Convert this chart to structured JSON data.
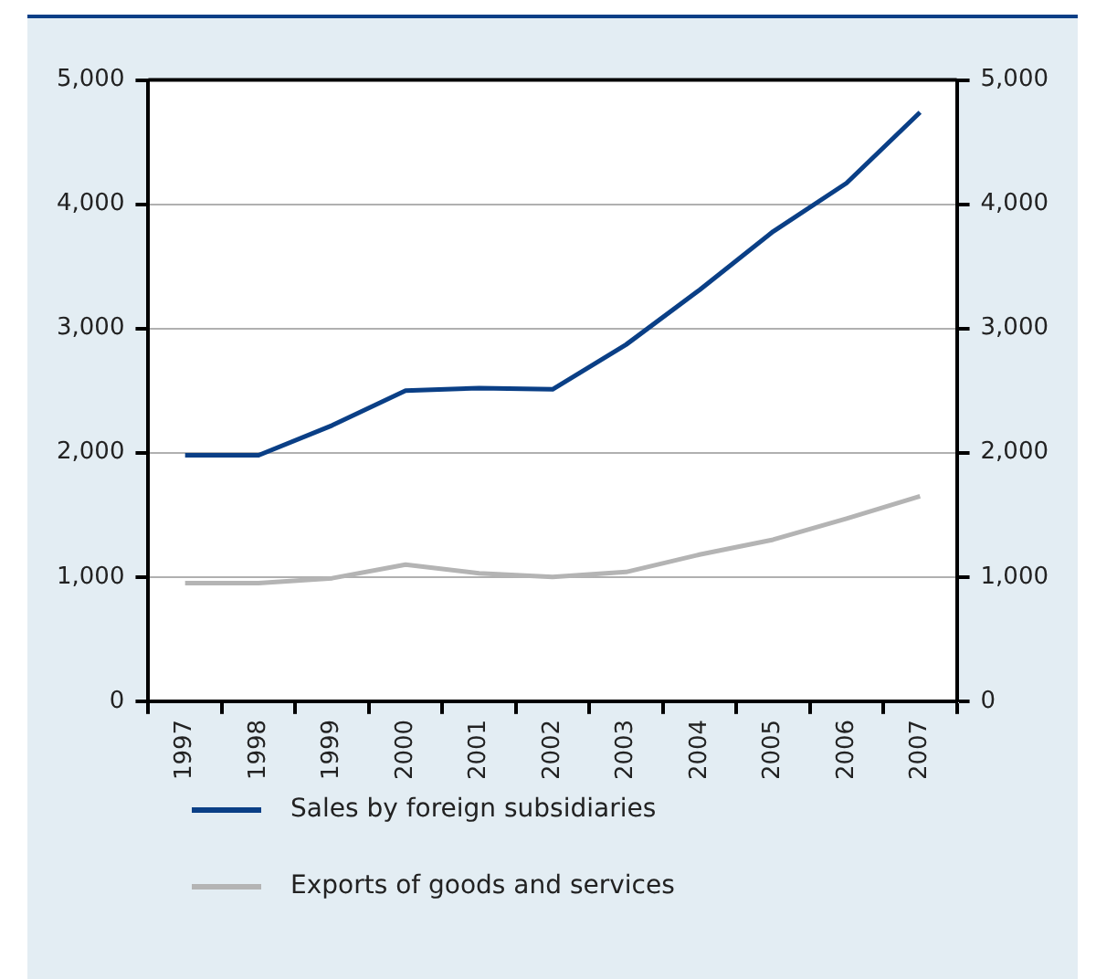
{
  "chart_data": {
    "type": "line",
    "categories": [
      "1997",
      "1998",
      "1999",
      "2000",
      "2001",
      "2002",
      "2003",
      "2004",
      "2005",
      "2006",
      "2007"
    ],
    "series": [
      {
        "name": "Sales by foreign subsidiaries",
        "color": "#0a3f86",
        "values": [
          1980,
          1980,
          2220,
          2500,
          2520,
          2510,
          2870,
          3310,
          3780,
          4170,
          4740
        ]
      },
      {
        "name": "Exports of goods and services",
        "color": "#b4b4b4",
        "values": [
          950,
          950,
          990,
          1100,
          1030,
          1000,
          1040,
          1180,
          1300,
          1470,
          1650
        ]
      }
    ],
    "ylim": [
      0,
      5000
    ],
    "yticks": [
      0,
      {
        "value": 1000,
        "label": "1,000"
      },
      {
        "value": 2000,
        "label": "2,000"
      },
      {
        "value": 3000,
        "label": "3,000"
      },
      {
        "value": 4000,
        "label": "4,000"
      },
      {
        "value": 5000,
        "label": "5,000"
      }
    ],
    "y2lim": [
      0,
      5000
    ],
    "y2ticks": [
      0,
      {
        "value": 1000,
        "label": "1,000"
      },
      {
        "value": 2000,
        "label": "2,000"
      },
      {
        "value": 3000,
        "label": "3,000"
      },
      {
        "value": 4000,
        "label": "4,000"
      },
      {
        "value": 5000,
        "label": "5,000"
      }
    ],
    "grid": "y",
    "legend": "bottom",
    "marker": "none",
    "line_style": "solid"
  }
}
